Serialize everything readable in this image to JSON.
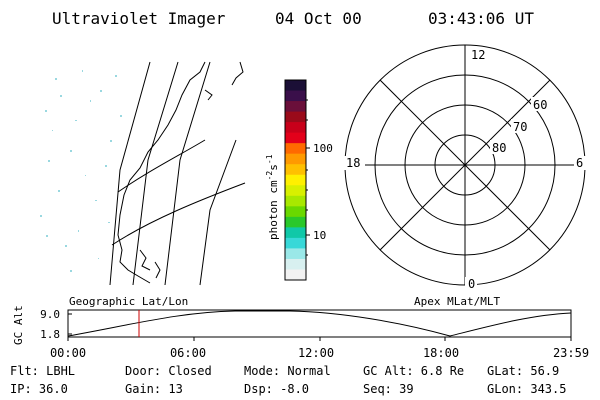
{
  "header": {
    "instrument": "Ultraviolet Imager",
    "date": "04 Oct 00",
    "time": "03:43:06 UT"
  },
  "colorbar": {
    "unit_prefix": "photon cm",
    "unit_exp1": "-2",
    "unit_mid": "s",
    "unit_exp2": "-1",
    "tick_100": "100",
    "tick_10": "10",
    "colors": [
      "#1b0f36",
      "#3a0f4a",
      "#6a0f3a",
      "#9a0a1a",
      "#c8001a",
      "#e3001a",
      "#ff6a00",
      "#ff9a00",
      "#ffc000",
      "#fff000",
      "#d8f000",
      "#a8e800",
      "#6ad800",
      "#2ac82a",
      "#10c8a8",
      "#38d8d8",
      "#9ae8e8",
      "#d8f0f0",
      "#f2f2f2"
    ]
  },
  "polar": {
    "mlt_12": "12",
    "mlt_18": "18",
    "mlt_6": "6",
    "mlt_0": "0",
    "lat_60": "60",
    "lat_70": "70",
    "lat_80": "80"
  },
  "timeline": {
    "ylabel": "GC Alt",
    "y_top": "9.0",
    "y_bot": "1.8",
    "left_label": "Geographic Lat/Lon",
    "right_label": "Apex MLat/MLT",
    "ticks": [
      "00:00",
      "06:00",
      "12:00",
      "18:00",
      "23:59"
    ]
  },
  "info": {
    "flt": "Flt: LBHL",
    "door": "Door: Closed",
    "mode": "Mode: Normal",
    "gcalt": "GC Alt: 6.8 Re",
    "glat": "GLat:  56.9",
    "ip": "IP: 36.0",
    "gain": "Gain: 13",
    "dsp": "Dsp:   -8.0",
    "seq": "Seq: 39",
    "glon": "GLon: 343.5"
  }
}
